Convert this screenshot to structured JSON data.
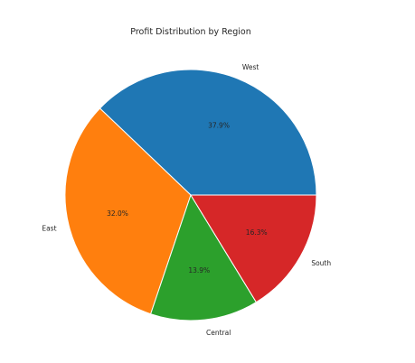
{
  "chart_data": {
    "type": "pie",
    "title": "Profit Distribution by Region",
    "categories": [
      "West",
      "East",
      "Central",
      "South"
    ],
    "values": [
      37.9,
      32.0,
      13.9,
      16.3
    ],
    "value_labels": [
      "37.9%",
      "32.0%",
      "13.9%",
      "16.3%"
    ],
    "colors": [
      "#1f77b4",
      "#ff7f0e",
      "#2ca02c",
      "#d62728"
    ],
    "start_angle_deg": 0,
    "direction": "counterclockwise",
    "legend": "none"
  }
}
